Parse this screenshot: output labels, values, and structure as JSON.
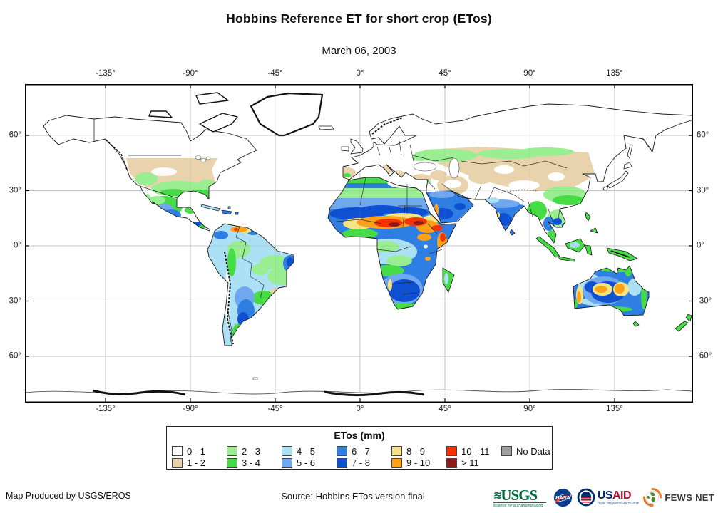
{
  "title": "Hobbins Reference ET for short crop (ETos)",
  "date": "March 06, 2003",
  "axes": {
    "lon_ticks": [
      "-135°",
      "-90°",
      "-45°",
      "0°",
      "45°",
      "90°",
      "135°"
    ],
    "lat_ticks": [
      "60°",
      "30°",
      "0°",
      "-30°",
      "-60°"
    ]
  },
  "legend": {
    "title": "ETos (mm)",
    "items": [
      {
        "label": "0 - 1",
        "color": "#FFFFFF"
      },
      {
        "label": "1 - 2",
        "color": "#E8D3AC"
      },
      {
        "label": "2 - 3",
        "color": "#98EE90"
      },
      {
        "label": "3 - 4",
        "color": "#46DC46"
      },
      {
        "label": "4 - 5",
        "color": "#ACE0F4"
      },
      {
        "label": "5 - 6",
        "color": "#6FA8EF"
      },
      {
        "label": "6 - 7",
        "color": "#2E7EE4"
      },
      {
        "label": "7 - 8",
        "color": "#0F50D2"
      },
      {
        "label": "8 - 9",
        "color": "#F6E385"
      },
      {
        "label": "9 - 10",
        "color": "#FFA217"
      },
      {
        "label": "10 - 11",
        "color": "#F53200"
      },
      {
        "label": "> 11",
        "color": "#8E1B1B"
      },
      {
        "label": "No Data",
        "color": "#9E9E9E"
      }
    ]
  },
  "footer": {
    "credit": "Map Produced by USGS/EROS",
    "source": "Source: Hobbins ETos version final"
  },
  "logos": {
    "usgs": {
      "name": "USGS",
      "tagline": "science for a changing world",
      "color": "#006F41"
    },
    "nasa": {
      "name": "NASA",
      "color": "#0B3D91"
    },
    "usaid": {
      "us": "US",
      "aid": "AID",
      "tagline": "FROM THE AMERICAN PEOPLE"
    },
    "fewsnet": {
      "name": "FEWS NET"
    }
  },
  "chart_data": {
    "type": "heatmap",
    "title": "Hobbins Reference ET for short crop (ETos)",
    "date": "March 06, 2003",
    "units": "mm",
    "legend_title": "ETos (mm)",
    "lon_ticks_deg": [
      -135,
      -90,
      -45,
      0,
      45,
      90,
      135
    ],
    "lat_ticks_deg": [
      60,
      30,
      0,
      -30,
      -60
    ],
    "classes": [
      "0 - 1",
      "1 - 2",
      "2 - 3",
      "3 - 4",
      "4 - 5",
      "5 - 6",
      "6 - 7",
      "7 - 8",
      "8 - 9",
      "9 - 10",
      "10 - 11",
      "> 11",
      "No Data"
    ],
    "class_colors": [
      "#FFFFFF",
      "#E8D3AC",
      "#98EE90",
      "#46DC46",
      "#ACE0F4",
      "#6FA8EF",
      "#2E7EE4",
      "#0F50D2",
      "#F6E385",
      "#FFA217",
      "#F53200",
      "#8E1B1B",
      "#9E9E9E"
    ]
  }
}
